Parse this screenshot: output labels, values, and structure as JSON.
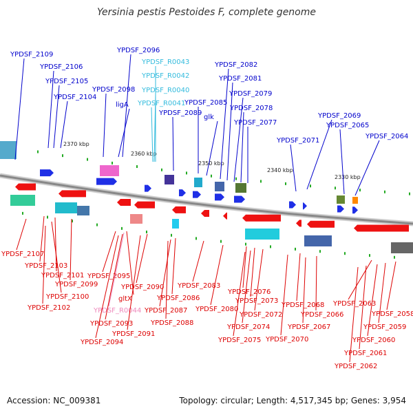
{
  "title": "Yersinia pestis Pestoides F, complete genome",
  "footer": {
    "accession": "Accession: NC_009381",
    "summary": "Topology: circular; Length: 4,517,345 bp; Genes: 3,954"
  },
  "kbp_ticks": [
    "2370 kbp",
    "2360 kbp",
    "2350 kbp",
    "2340 kbp",
    "2330 kbp"
  ],
  "colors": {
    "forward_label": "#0000cc",
    "reverse_label": "#dd0000",
    "rna_forward_label": "#33bbdd",
    "rna_reverse_label": "#ee88bb",
    "forward_gene": "#1f2fe6",
    "reverse_gene": "#ee1111",
    "backbone": "#888888"
  },
  "top_labels": [
    "YPDSF_2109",
    "YPDSF_2106",
    "YPDSF_2105",
    "YPDSF_2104",
    "YPDSF_2098",
    "ligA",
    "YPDSF_2096",
    "YPDSF_R0043",
    "YPDSF_R0042",
    "YPDSF_R0040",
    "YPDSF_R0041",
    "YPDSF_2089",
    "YPDSF_2085",
    "glk",
    "YPDSF_2082",
    "YPDSF_2081",
    "YPDSF_2079",
    "YPDSF_2078",
    "YPDSF_2077",
    "YPDSF_2069",
    "YPDSF_2071",
    "YPDSF_2065",
    "YPDSF_2064"
  ],
  "bottom_labels": [
    "YPDSF_2107",
    "YPDSF_2103",
    "YPDSF_2101",
    "YPDSF_2099",
    "YPDSF_2100",
    "YPDSF_2102",
    "YPDSF_2095",
    "gltX",
    "YPDSF_R0044",
    "YPDSF_2093",
    "YPDSF_2094",
    "YPDSF_2090",
    "YPDSF_2091",
    "YPDSF_2086",
    "YPDSF_2087",
    "YPDSF_2088",
    "YPDSF_2083",
    "YPDSF_2080",
    "YPDSF_2076",
    "YPDSF_2073",
    "YPDSF_2072",
    "YPDSF_2074",
    "YPDSF_2075",
    "YPDSF_2068",
    "YPDSF_2070",
    "YPDSF_2066",
    "YPDSF_2067",
    "YPDSF_2063",
    "YPDSF_2058",
    "YPDSF_2059",
    "YPDSF_2060",
    "YPDSF_2061",
    "YPDSF_2062"
  ]
}
